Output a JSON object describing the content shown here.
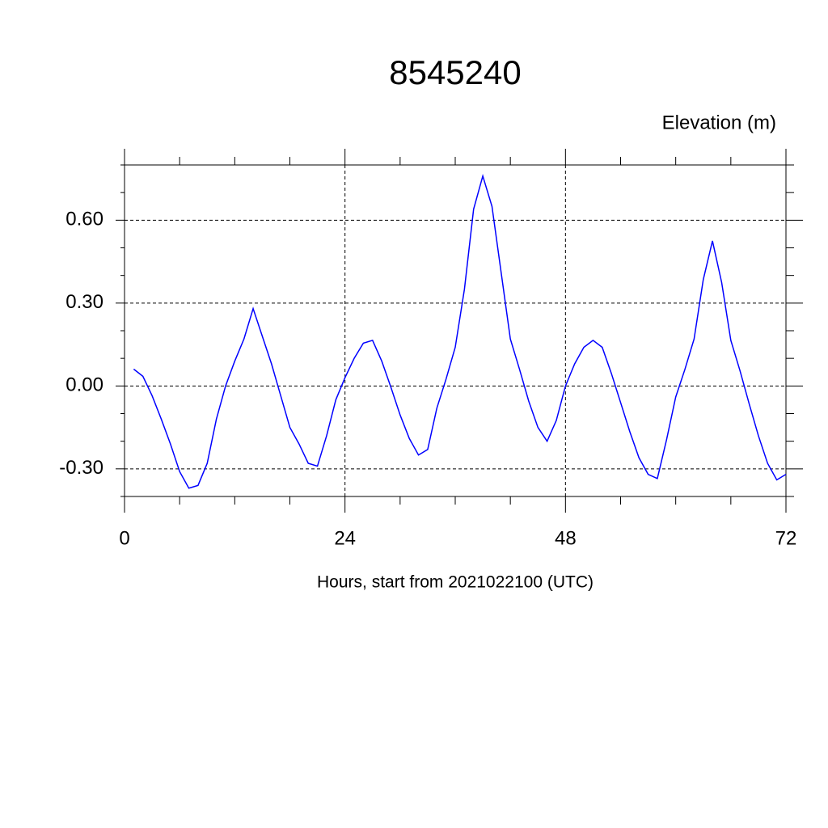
{
  "chart_data": {
    "type": "line",
    "title": "8545240",
    "subtitle": "Elevation (m)",
    "x_label": "Hours, start from 2021022100 (UTC)",
    "x": [
      1,
      2,
      3,
      4,
      5,
      6,
      7,
      8,
      9,
      10,
      11,
      12,
      13,
      14,
      15,
      16,
      17,
      18,
      19,
      20,
      21,
      22,
      23,
      24,
      25,
      26,
      27,
      28,
      29,
      30,
      31,
      32,
      33,
      34,
      35,
      36,
      37,
      38,
      39,
      40,
      41,
      42,
      43,
      44,
      45,
      46,
      47,
      48,
      49,
      50,
      51,
      52,
      53,
      54,
      55,
      56,
      57,
      58,
      59,
      60,
      61,
      62,
      63,
      64,
      65,
      66,
      67,
      68,
      69,
      70,
      71,
      72
    ],
    "series": [
      {
        "color": "#0000ff",
        "values": [
          0.061,
          0.035,
          -0.035,
          -0.12,
          -0.21,
          -0.31,
          -0.37,
          -0.36,
          -0.28,
          -0.12,
          0.0,
          0.09,
          0.17,
          0.28,
          0.18,
          0.08,
          -0.035,
          -0.15,
          -0.21,
          -0.28,
          -0.29,
          -0.18,
          -0.05,
          0.03,
          0.1,
          0.155,
          0.165,
          0.09,
          -0.005,
          -0.105,
          -0.19,
          -0.25,
          -0.23,
          -0.08,
          0.025,
          0.14,
          0.35,
          0.64,
          0.76,
          0.65,
          0.41,
          0.17,
          0.06,
          -0.055,
          -0.15,
          -0.2,
          -0.125,
          0.0,
          0.08,
          0.14,
          0.165,
          0.14,
          0.045,
          -0.06,
          -0.165,
          -0.26,
          -0.32,
          -0.335,
          -0.195,
          -0.04,
          0.06,
          0.17,
          0.385,
          0.525,
          0.375,
          0.165,
          0.055,
          -0.065,
          -0.18,
          -0.28,
          -0.34,
          -0.32
        ]
      }
    ],
    "xlim": [
      0,
      72
    ],
    "ylim": [
      -0.4,
      0.8
    ],
    "xticks": [
      0,
      24,
      48,
      72
    ],
    "yticks": [
      {
        "value": -0.3,
        "label": "-0.30"
      },
      {
        "value": 0,
        "label": "0.00"
      },
      {
        "value": 0.3,
        "label": "0.30"
      },
      {
        "value": 0.6,
        "label": "0.60"
      }
    ],
    "x_minor_ticks": [
      6,
      12,
      18,
      30,
      36,
      42,
      54,
      60,
      66
    ],
    "y_minor_ticks": [
      -0.4,
      -0.2,
      -0.1,
      0.1,
      0.2,
      0.4,
      0.5,
      0.7,
      0.8
    ],
    "grid": true
  }
}
